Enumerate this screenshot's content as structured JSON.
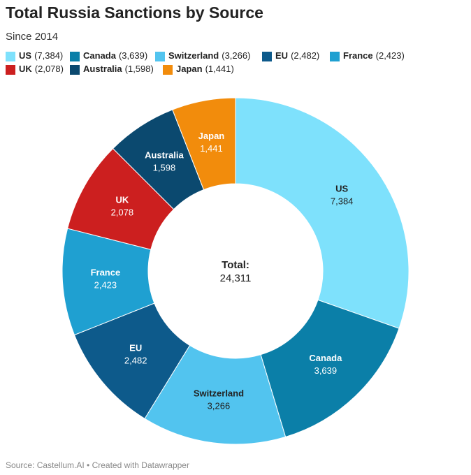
{
  "chart_data": {
    "type": "pie",
    "title": "Total Russia Sanctions by Source",
    "subtitle": "Since 2014",
    "categories": [
      "US",
      "Canada",
      "Switzerland",
      "EU",
      "France",
      "UK",
      "Australia",
      "Japan"
    ],
    "values": [
      7384,
      3639,
      3266,
      2482,
      2423,
      2078,
      1598,
      1441
    ],
    "value_labels": [
      "7,384",
      "3,639",
      "3,266",
      "2,482",
      "2,423",
      "2,078",
      "1,598",
      "1,441"
    ],
    "legend_labels": [
      "(7,384)",
      "(3,639)",
      "(3,266)",
      "(2,482)",
      "(2,423)",
      "(2,078)",
      "(1,598)",
      "(1,441)"
    ],
    "colors": [
      "#7ee1fc",
      "#0b7fa8",
      "#52c4ef",
      "#0d5a8b",
      "#1fa0d1",
      "#cc1f1f",
      "#0b496f",
      "#f28c0c"
    ],
    "center_label": "Total:",
    "total": {
      "value": 24311,
      "label": "24,311"
    },
    "source": "Source: Castellum.AI • Created with Datawrapper"
  }
}
